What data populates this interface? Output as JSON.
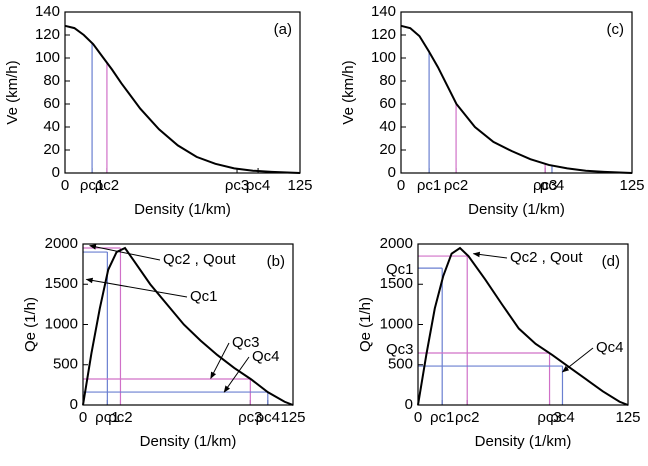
{
  "chart_data": [
    {
      "type": "line",
      "panel_label": "(a)",
      "xlabel": "Density (1/km)",
      "ylabel": "Ve (km/h)",
      "xlim": [
        0,
        125
      ],
      "ylim": [
        0,
        140
      ],
      "xticks": [
        0,
        {
          "value": 14.4,
          "label": "ρc1"
        },
        {
          "value": 22.3,
          "label": "ρc2"
        },
        {
          "value": 91.5,
          "label": "ρc3"
        },
        {
          "value": 102.7,
          "label": "ρc4"
        },
        125
      ],
      "yticks": [
        0,
        20,
        40,
        60,
        80,
        100,
        120,
        140
      ],
      "x": [
        0,
        5,
        10,
        15,
        20,
        25,
        30,
        40,
        50,
        60,
        70,
        80,
        90,
        100,
        110,
        125
      ],
      "series": [
        {
          "color": "#000000",
          "values": [
            128,
            126,
            120,
            112,
            101,
            90,
            78,
            56,
            38,
            24,
            14,
            8,
            4,
            2,
            1,
            0
          ]
        }
      ],
      "cross": false,
      "crit_lines": [
        {
          "x": 14.4,
          "y": 113,
          "color": "#6a7fd0"
        },
        {
          "x": 22.3,
          "y": 96,
          "color": "#d070c8"
        }
      ],
      "annotations": []
    },
    {
      "type": "line",
      "panel_label": "(c)",
      "xlabel": "Density (1/km)",
      "ylabel": "Ve (km/h)",
      "xlim": [
        0,
        125
      ],
      "ylim": [
        0,
        140
      ],
      "xticks": [
        0,
        {
          "value": 15.2,
          "label": "ρc1"
        },
        {
          "value": 29.8,
          "label": "ρc2"
        },
        {
          "value": 78,
          "label": "ρc3"
        },
        {
          "value": 81.7,
          "label": "ρc4"
        },
        125
      ],
      "yticks": [
        0,
        20,
        40,
        60,
        80,
        100,
        120,
        140
      ],
      "x": [
        0,
        5,
        10,
        15,
        20,
        25,
        30,
        40,
        50,
        60,
        70,
        80,
        90,
        100,
        110,
        125
      ],
      "series": [
        {
          "color": "#000000",
          "values": [
            128,
            126,
            119,
            106,
            92,
            76,
            60,
            40,
            27,
            19,
            12,
            7,
            4,
            2,
            1,
            0
          ]
        }
      ],
      "cross": false,
      "crit_lines": [
        {
          "x": 15.2,
          "y": 105,
          "color": "#6a7fd0"
        },
        {
          "x": 29.8,
          "y": 60,
          "color": "#d070c8"
        },
        {
          "x": 78,
          "y": 8,
          "color": "#d070c8"
        },
        {
          "x": 81.7,
          "y": 7,
          "color": "#6a7fd0"
        }
      ],
      "annotations": []
    },
    {
      "type": "line",
      "panel_label": "(b)",
      "xlabel": "Density (1/km)",
      "ylabel": "Qe (1/h)",
      "xlim": [
        0,
        125
      ],
      "ylim": [
        0,
        2000
      ],
      "xticks": [
        0,
        {
          "value": 14.5,
          "label": "ρc1"
        },
        {
          "value": 22.3,
          "label": "ρc2"
        },
        {
          "value": 99.6,
          "label": "ρc3"
        },
        {
          "value": 110,
          "label": "ρc4"
        },
        125
      ],
      "yticks": [
        0,
        500,
        1000,
        1500,
        2000
      ],
      "x": [
        0,
        5,
        10,
        15,
        20,
        25,
        30,
        40,
        50,
        60,
        70,
        80,
        90,
        100,
        110,
        120,
        125
      ],
      "series": [
        {
          "color": "#000000",
          "values": [
            0,
            640,
            1200,
            1680,
            1900,
            1950,
            1800,
            1500,
            1250,
            1000,
            800,
            620,
            460,
            320,
            160,
            40,
            0
          ]
        }
      ],
      "cross": true,
      "crit_lines": [
        {
          "x": 14.5,
          "y": 1900,
          "color": "#6a7fd0"
        },
        {
          "x": 22.3,
          "y": 1950,
          "color": "#d070c8"
        },
        {
          "x": 99.6,
          "y": 323,
          "color": "#d070c8"
        },
        {
          "x": 110,
          "y": 161,
          "color": "#6a7fd0"
        }
      ],
      "annotations": [
        {
          "text": "Qc2 , Qout",
          "x": 4,
          "y": 1980
        },
        {
          "text": "Qc1",
          "x": 2,
          "y": 1560
        },
        {
          "text": "Qc3",
          "x": 76,
          "y": 330
        },
        {
          "text": "Qc4",
          "x": 84,
          "y": 160
        }
      ]
    },
    {
      "type": "line",
      "panel_label": "(d)",
      "xlabel": "Density (1/km)",
      "ylabel": "Qe (1/h)",
      "xlim": [
        0,
        125
      ],
      "ylim": [
        0,
        2000
      ],
      "xticks": [
        0,
        {
          "value": 14.4,
          "label": "ρc1"
        },
        {
          "value": 29.3,
          "label": "ρc2"
        },
        {
          "value": 78.3,
          "label": "ρc3"
        },
        {
          "value": 86,
          "label": "ρc4"
        },
        125
      ],
      "yticks": [
        0,
        500,
        1000,
        1500,
        2000
      ],
      "x": [
        0,
        5,
        10,
        15,
        20,
        25,
        30,
        40,
        50,
        60,
        70,
        80,
        90,
        100,
        110,
        120,
        125
      ],
      "series": [
        {
          "color": "#000000",
          "values": [
            0,
            630,
            1200,
            1600,
            1880,
            1950,
            1850,
            1560,
            1250,
            950,
            760,
            620,
            470,
            320,
            170,
            40,
            0
          ]
        }
      ],
      "cross": true,
      "crit_lines": [
        {
          "x": 14.4,
          "y": 1700,
          "color": "#6a7fd0"
        },
        {
          "x": 29.3,
          "y": 1850,
          "color": "#d070c8"
        },
        {
          "x": 78.3,
          "y": 646,
          "color": "#d070c8"
        },
        {
          "x": 86,
          "y": 484,
          "color": "#6a7fd0"
        }
      ],
      "annotations": [
        {
          "text": "Qc2 , Qout",
          "x": 33,
          "y": 1880
        },
        {
          "text": "Qc1",
          "x": 0,
          "y": 1700
        },
        {
          "text": "Qc3",
          "x": 0,
          "y": 646
        },
        {
          "text": "Qc4",
          "x": 86,
          "y": 410
        }
      ]
    }
  ]
}
